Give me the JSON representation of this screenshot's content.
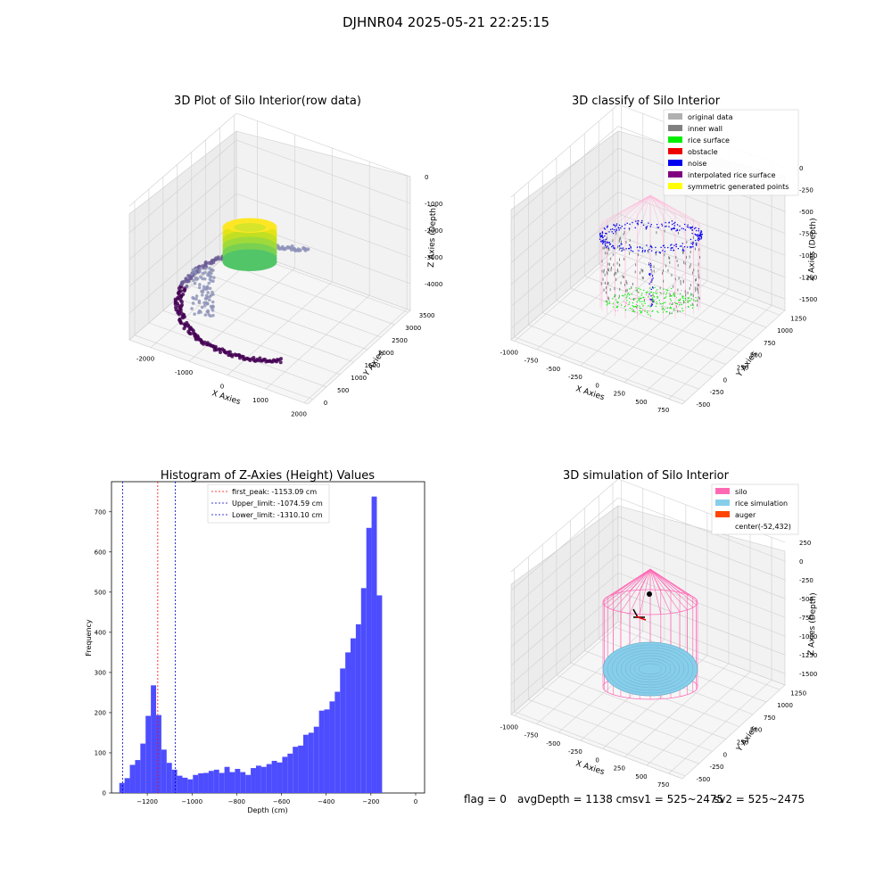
{
  "figure_title": "DJHNR04 2025-05-21 22:25:15",
  "footer": {
    "flag": "flag = 0",
    "avg_sv1": "avgDepth = 1138 cmsv1 = 525~2475",
    "sv2": "sv2 = 525~2475"
  },
  "colors": {
    "original_data": "#b0b0b0",
    "inner_wall": "#808080",
    "rice_surface": "#00ee00",
    "obstacle": "#ee0000",
    "noise": "#0000ee",
    "interpolated": "#800080",
    "symmetric": "#ffff00",
    "silo": "#ff69b4",
    "rice_sim": "#87ceeb",
    "auger": "#ff4500",
    "hist": "#4d4dff",
    "first_peak": "#ff0000",
    "limits": "#0000cc"
  },
  "chart_data": [
    {
      "type": "scatter",
      "projection": "3d",
      "title": "3D Plot of Silo Interior(row data)",
      "xlabel": "X Axies",
      "ylabel": "Y Axies",
      "zlabel": "Z Axies (Depth)",
      "xticks": [
        "-2000",
        "-1000",
        "0",
        "1000",
        "2000"
      ],
      "yticks": [
        "0",
        "500",
        "1000",
        "1500",
        "2000",
        "2500",
        "3000",
        "3500"
      ],
      "zticks": [
        "0",
        "-1000",
        "-2000",
        "-3000",
        "-4000"
      ],
      "xlim": [
        -2400,
        2000
      ],
      "ylim": [
        0,
        3500
      ],
      "zlim": [
        -4300,
        0
      ],
      "colormap": "viridis",
      "description_points": "scatter of sensor points colored by depth"
    },
    {
      "type": "scatter",
      "projection": "3d",
      "title": "3D classify of Silo Interior",
      "xlabel": "X Axies",
      "ylabel": "Y Axies",
      "zlabel": "Z Axies (Depth)",
      "xticks": [
        "-1000",
        "-750",
        "-500",
        "-250",
        "0",
        "250",
        "500",
        "750"
      ],
      "yticks": [
        "-500",
        "-250",
        "0",
        "250",
        "500",
        "750",
        "1000",
        "1250"
      ],
      "zticks": [
        "0",
        "-250",
        "-500",
        "-750",
        "-1000",
        "-1250",
        "-1500"
      ],
      "legend": [
        "original data",
        "inner wall",
        "rice surface",
        "obstacle",
        "noise",
        "interpolated rice surface",
        "symmetric generated points"
      ],
      "z_top_partial_label": "0"
    },
    {
      "type": "bar",
      "title": "Histogram of Z-Axies (Height) Values",
      "xlabel": "Depth (cm)",
      "ylabel": "Frequency",
      "xlim": [
        -1360,
        40
      ],
      "ylim": [
        0,
        775
      ],
      "xticks": [
        -1200,
        -1000,
        -800,
        -600,
        -400,
        -200,
        0
      ],
      "yticks": [
        0,
        100,
        200,
        300,
        400,
        500,
        600,
        700
      ],
      "bin_width": 23.5,
      "bin_start": -1325,
      "values": [
        25,
        37,
        70,
        82,
        123,
        192,
        268,
        194,
        108,
        75,
        58,
        43,
        38,
        34,
        45,
        49,
        50,
        55,
        58,
        50,
        65,
        52,
        60,
        52,
        45,
        62,
        68,
        65,
        72,
        80,
        76,
        90,
        98,
        115,
        118,
        145,
        150,
        165,
        205,
        208,
        228,
        252,
        310,
        350,
        385,
        420,
        510,
        660,
        738,
        492
      ],
      "vlines": [
        {
          "label": "first_peak: -1153.09 cm",
          "x": -1153.09,
          "color": "red"
        },
        {
          "label": "Upper_limit: -1074.59 cm",
          "x": -1074.59,
          "color": "blue"
        },
        {
          "label": "Lower_limit: -1310.10 cm",
          "x": -1310.1,
          "color": "blue"
        }
      ]
    },
    {
      "type": "scatter",
      "projection": "3d",
      "title": "3D simulation of Silo Interior",
      "xlabel": "X Axies",
      "ylabel": "Y Axies",
      "zlabel": "Z Axies (Depth)",
      "xticks": [
        "-1000",
        "-750",
        "-500",
        "-250",
        "0",
        "250",
        "500",
        "750"
      ],
      "yticks": [
        "-500",
        "-250",
        "0",
        "250",
        "500",
        "750",
        "1000",
        "1250"
      ],
      "zticks": [
        "250",
        "0",
        "-250",
        "-500",
        "-750",
        "-1000",
        "-1250",
        "-1500"
      ],
      "legend": [
        "silo",
        "rice simulation",
        "auger",
        "center(-52,432)"
      ]
    }
  ]
}
